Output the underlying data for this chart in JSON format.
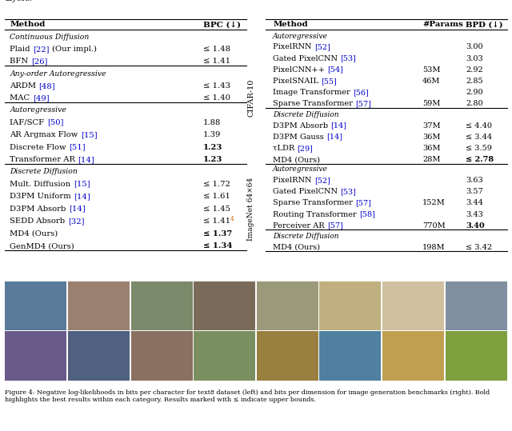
{
  "title_text": "layers.",
  "left_table": {
    "header": [
      "Method",
      "BPC (↓)"
    ],
    "sections": [
      {
        "section_name": "Continuous Diffusion",
        "rows": [
          {
            "method": "Plaid [22] (Our impl.)",
            "ref_color": "blue",
            "value": "≤ 1.48",
            "bold": false
          },
          {
            "method": "BFN [26]",
            "ref_color": "blue",
            "value": "≤ 1.41",
            "bold": false
          }
        ]
      },
      {
        "section_name": "Any-order Autoregressive",
        "rows": [
          {
            "method": "ARDM [48]",
            "ref_color": "blue",
            "value": "≤ 1.43",
            "bold": false
          },
          {
            "method": "MAC [49]",
            "ref_color": "blue",
            "value": "≤ 1.40",
            "bold": false
          }
        ]
      },
      {
        "section_name": "Autoregressive",
        "rows": [
          {
            "method": "IAF/SCF [50]",
            "ref_color": "blue",
            "value": "1.88",
            "bold": false
          },
          {
            "method": "AR Argmax Flow [15]",
            "ref_color": "blue",
            "value": "1.39",
            "bold": false
          },
          {
            "method": "Discrete Flow [51]",
            "ref_color": "blue",
            "value": "1.23",
            "bold": true
          },
          {
            "method": "Transformer AR [14]",
            "ref_color": "blue",
            "value": "1.23",
            "bold": true
          }
        ]
      },
      {
        "section_name": "Discrete Diffusion",
        "rows": [
          {
            "method": "Mult. Diffusion [15]",
            "ref_color": "blue",
            "value": "≤ 1.72",
            "bold": false
          },
          {
            "method": "D3PM Uniform [14]",
            "ref_color": "blue",
            "value": "≤ 1.61",
            "bold": false
          },
          {
            "method": "D3PM Absorb [14]",
            "ref_color": "blue",
            "value": "≤ 1.45",
            "bold": false
          },
          {
            "method": "SEDD Absorb [32]",
            "ref_color": "blue",
            "value": "≤ 1.41⁴",
            "bold": false,
            "superscript": true
          },
          {
            "method": "MD4 (Ours)",
            "ref_color": "black",
            "value": "≤ 1.37",
            "bold": true
          },
          {
            "method": "GenMD4 (Ours)",
            "ref_color": "black",
            "value": "≤ 1.34",
            "bold": true
          }
        ]
      }
    ]
  },
  "right_table": {
    "header": [
      "Method",
      "#Params",
      "BPD (↓)"
    ],
    "row_label_cifar": "CIFAR-10",
    "row_label_imagenet": "ImageNet 64×64",
    "sections_cifar": [
      {
        "section_name": "Autoregressive",
        "rows": [
          {
            "method": "PixelRNN [52]",
            "params": "",
            "value": "3.00",
            "bold": false
          },
          {
            "method": "Gated PixelCNN [53]",
            "params": "",
            "value": "3.03",
            "bold": false
          },
          {
            "method": "PixelCNN++ [54]",
            "params": "53M",
            "value": "2.92",
            "bold": false
          },
          {
            "method": "PixelSNAIL [55]",
            "params": "46M",
            "value": "2.85",
            "bold": false
          },
          {
            "method": "Image Transformer [56]",
            "params": "",
            "value": "2.90",
            "bold": false
          },
          {
            "method": "Sparse Transformer [57]",
            "params": "59M",
            "value": "2.80",
            "bold": false
          }
        ]
      },
      {
        "section_name": "Discrete Diffusion",
        "rows": [
          {
            "method": "D3PM Absorb [14]",
            "params": "37M",
            "value": "≤ 4.40",
            "bold": false
          },
          {
            "method": "D3PM Gauss [14]",
            "params": "36M",
            "value": "≤ 3.44",
            "bold": false
          },
          {
            "method": "τLDR [29]",
            "params": "36M",
            "value": "≤ 3.59",
            "bold": false
          },
          {
            "method": "MD4 (Ours)",
            "params": "28M",
            "value": "≤ 2.78",
            "bold": true
          }
        ]
      }
    ],
    "sections_imagenet": [
      {
        "section_name": "Autoregressive",
        "rows": [
          {
            "method": "PixelRNN [52]",
            "params": "",
            "value": "3.63",
            "bold": false
          },
          {
            "method": "Gated PixelCNN [53]",
            "params": "",
            "value": "3.57",
            "bold": false
          },
          {
            "method": "Sparse Transformer [57]",
            "params": "152M",
            "value": "3.44",
            "bold": false
          },
          {
            "method": "Routing Transformer [58]",
            "params": "",
            "value": "3.43",
            "bold": false
          },
          {
            "method": "Perceiver AR [57]",
            "params": "770M",
            "value": "3.40",
            "bold": true
          }
        ]
      },
      {
        "section_name": "Discrete Diffusion",
        "rows": [
          {
            "method": "MD4 (Ours)",
            "params": "198M",
            "value": "≤ 3.42",
            "bold": false
          }
        ]
      }
    ]
  },
  "images_row": {
    "count": 8,
    "placeholder": true
  },
  "figure_caption": "Figure 4: Negative log-likelihoods in bits per character for text8 dataset (left) and bits per dimension for image generation benchmarks (right). Bold highlights the best results within each category. Results marked with ≤ indicate upper bounds.",
  "bg_color": "#ffffff",
  "text_color": "#000000",
  "blue_color": "#0000cc",
  "orange_color": "#cc6600"
}
